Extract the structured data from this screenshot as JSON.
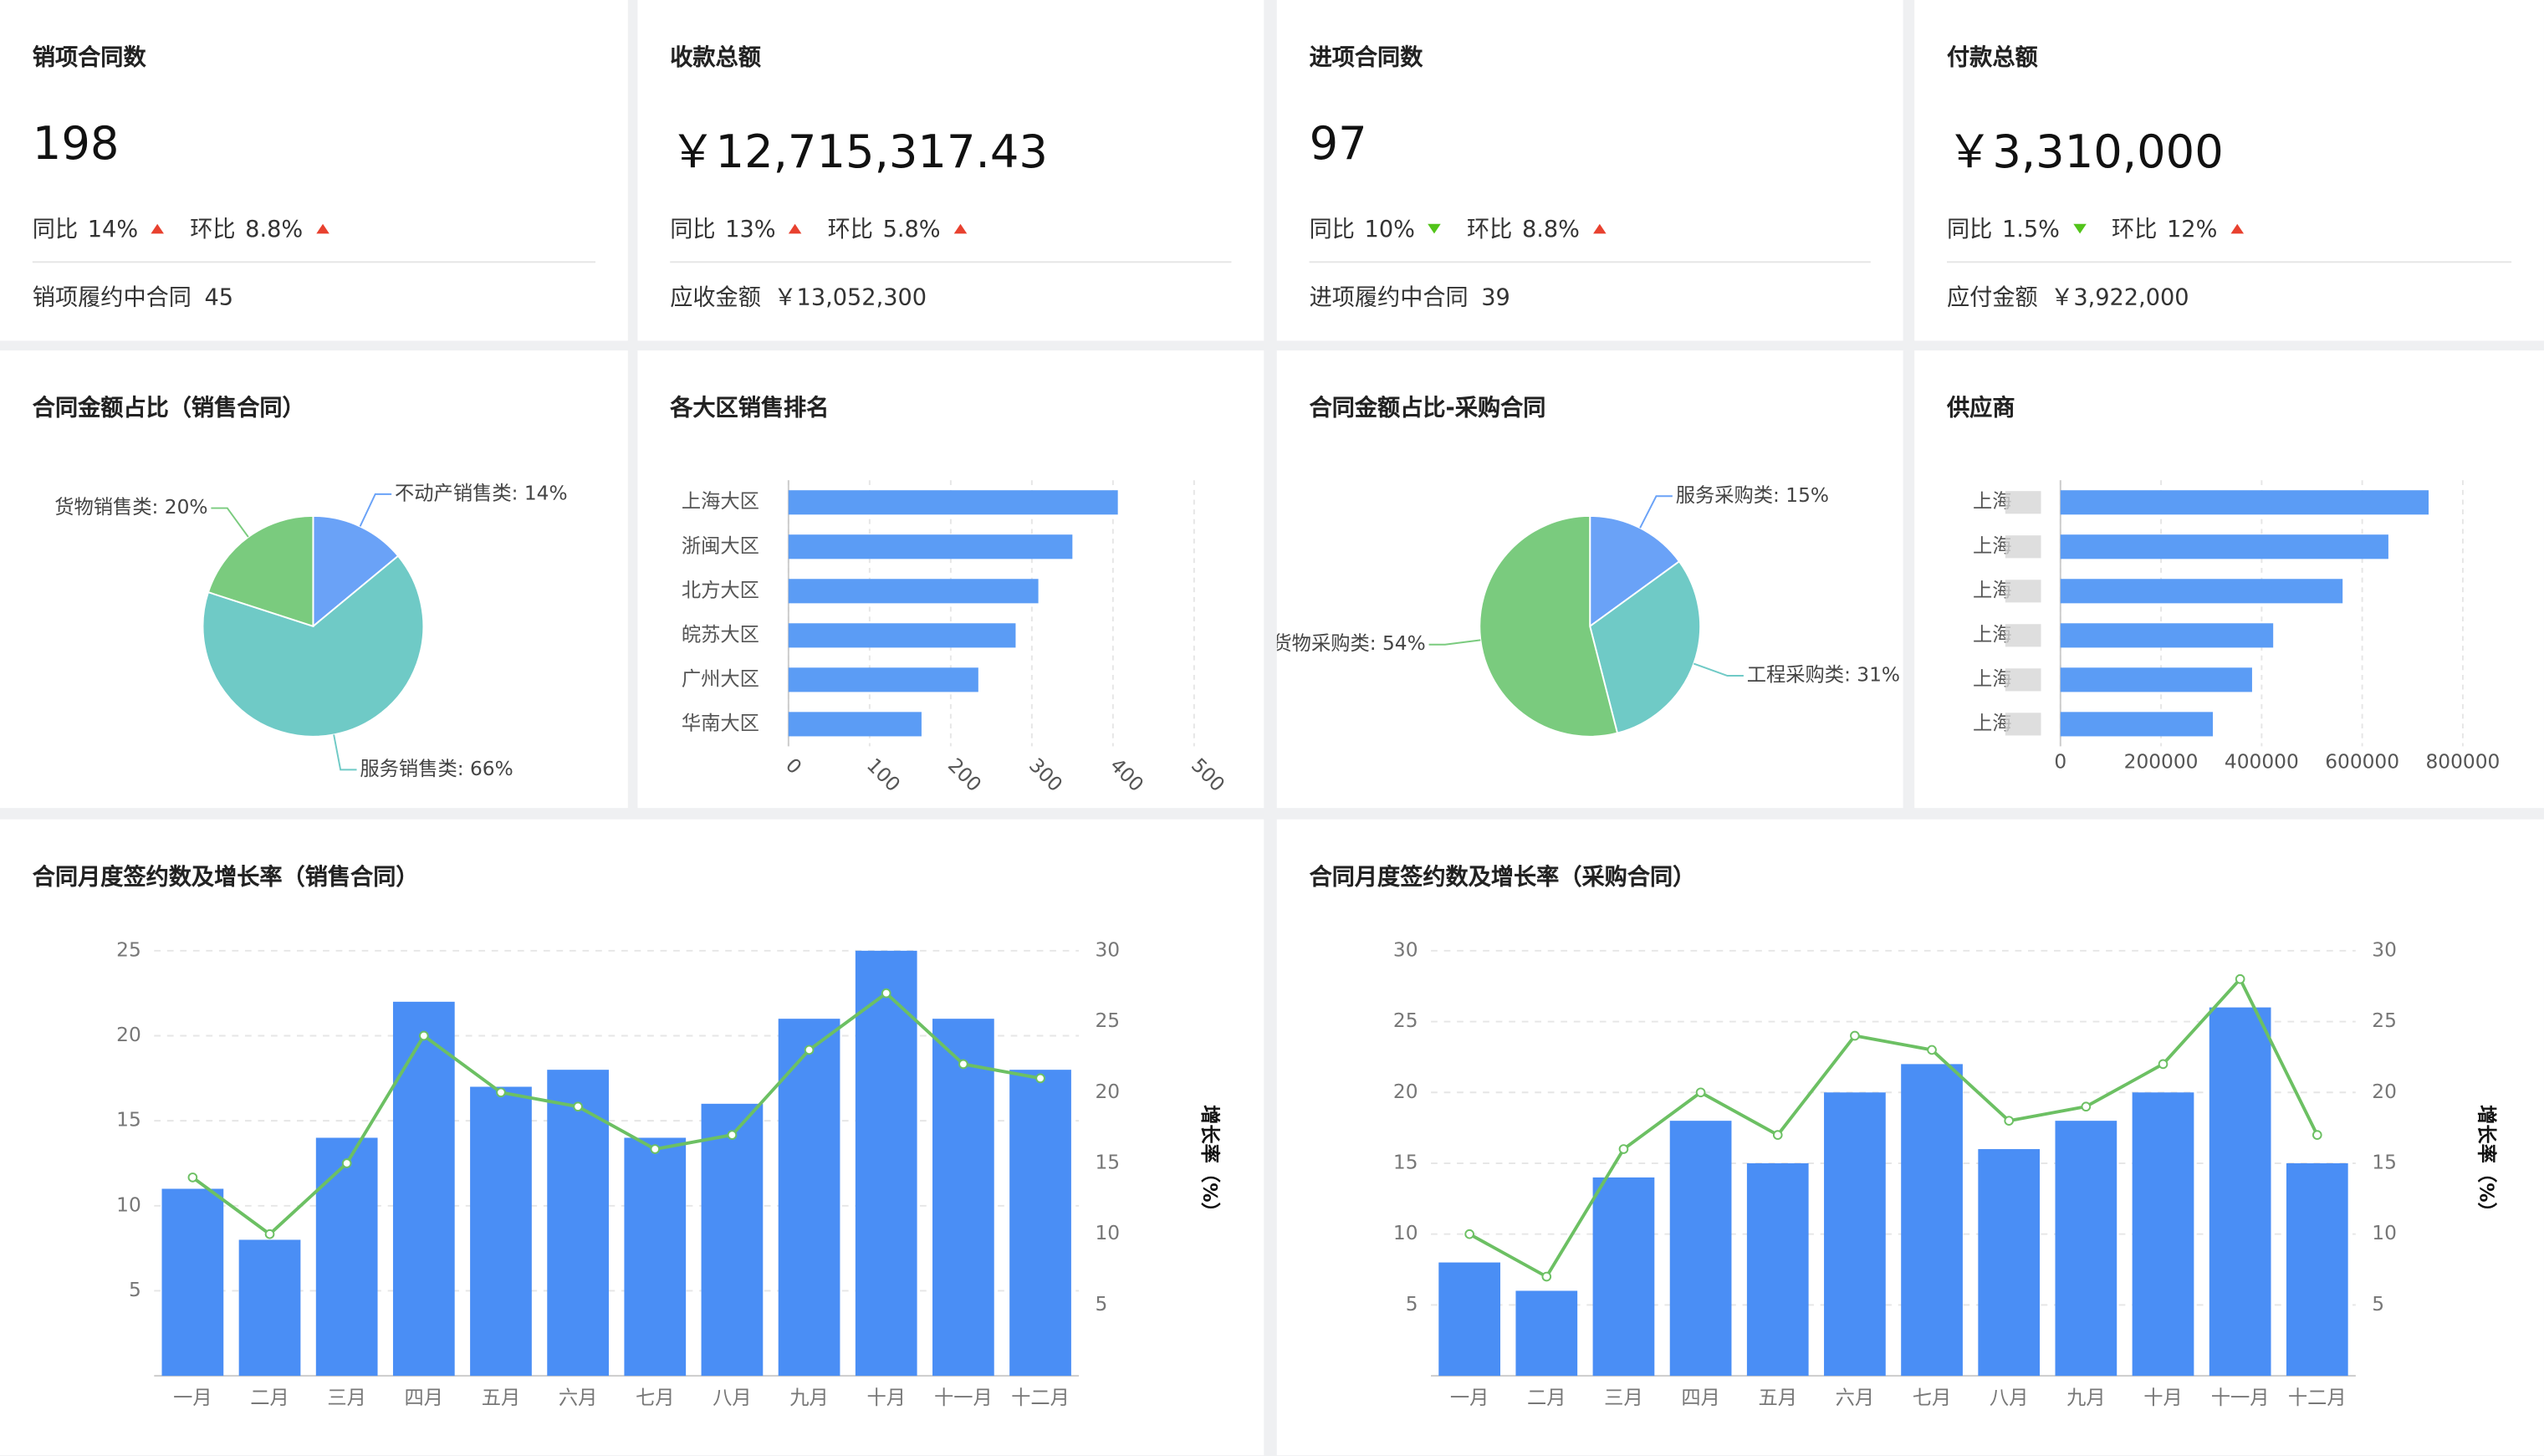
{
  "cards": [
    {
      "title": "销项合同数",
      "value": "198",
      "yoy_label": "同比",
      "yoy": "14%",
      "yoy_trend": "up",
      "mom_label": "环比",
      "mom": "8.8%",
      "mom_trend": "up",
      "footer_label": "销项履约中合同",
      "footer_value": "45"
    },
    {
      "title": "收款总额",
      "value": "￥12,715,317.43",
      "yoy_label": "同比",
      "yoy": "13%",
      "yoy_trend": "up",
      "mom_label": "环比",
      "mom": "5.8%",
      "mom_trend": "up",
      "footer_label": "应收金额",
      "footer_value": "￥13,052,300"
    },
    {
      "title": "进项合同数",
      "value": "97",
      "yoy_label": "同比",
      "yoy": "10%",
      "yoy_trend": "down",
      "mom_label": "环比",
      "mom": "8.8%",
      "mom_trend": "up",
      "footer_label": "进项履约中合同",
      "footer_value": "39"
    },
    {
      "title": "付款总额",
      "value": "￥3,310,000",
      "yoy_label": "同比",
      "yoy": "1.5%",
      "yoy_trend": "down",
      "mom_label": "环比",
      "mom": "12%",
      "mom_trend": "up",
      "footer_label": "应付金额",
      "footer_value": "￥3,922,000"
    }
  ],
  "chart_data": [
    {
      "type": "pie",
      "title": "合同金额占比（销售合同）",
      "labels": [
        "不动产销售类: 14%",
        "服务销售类: 66%",
        "货物销售类: 20%"
      ],
      "values": [
        14,
        66,
        20
      ],
      "colors": [
        "#6aa2f7",
        "#6fcac6",
        "#7acb7e"
      ]
    },
    {
      "type": "hbar",
      "title": "各大区销售排名",
      "categories": [
        "上海大区",
        "浙闽大区",
        "北方大区",
        "皖苏大区",
        "广州大区",
        "华南大区"
      ],
      "values": [
        406,
        350,
        308,
        280,
        234,
        164
      ],
      "color": "#5b9cf5",
      "xlim": [
        0,
        500
      ],
      "xticks": [
        0,
        100,
        200,
        300,
        400,
        500
      ],
      "grid": true
    },
    {
      "type": "pie",
      "title": "合同金额占比-采购合同",
      "labels": [
        "服务采购类: 15%",
        "工程采购类: 31%",
        "货物采购类: 54%"
      ],
      "values": [
        15,
        31,
        54
      ],
      "colors": [
        "#6aa2f7",
        "#6fcac6",
        "#7acb7e"
      ]
    },
    {
      "type": "hbar",
      "title": "供应商",
      "categories": [
        "上海",
        "上海",
        "上海",
        "上海",
        "上海",
        "上海"
      ],
      "values": [
        732000,
        652000,
        561000,
        423000,
        381000,
        303000
      ],
      "color": "#5b9cf5",
      "xlim": [
        0,
        800000
      ],
      "xticks": [
        0,
        200000,
        400000,
        600000,
        800000
      ],
      "grid": true
    },
    {
      "type": "combo",
      "title": "合同月度签约数及增长率（销售合同）",
      "categories": [
        "一月",
        "二月",
        "三月",
        "四月",
        "五月",
        "六月",
        "七月",
        "八月",
        "九月",
        "十月",
        "十一月",
        "十二月"
      ],
      "series": [
        {
          "type": "bar",
          "color": "#4a8ef5",
          "values": [
            11,
            8,
            14,
            22,
            17,
            18,
            14,
            16,
            21,
            25,
            21,
            18
          ]
        },
        {
          "type": "line",
          "axis": "y2",
          "color": "#6cc063",
          "values": [
            14,
            10,
            15,
            24,
            20,
            19,
            16,
            17,
            23,
            27,
            22,
            21
          ]
        }
      ],
      "ylim": [
        0,
        25
      ],
      "yticks": [
        5,
        10,
        15,
        20,
        25
      ],
      "y2lim": [
        0,
        30
      ],
      "y2ticks": [
        5,
        10,
        15,
        20,
        25,
        30
      ],
      "y2_label": "增长率（%）",
      "grid": true
    },
    {
      "type": "combo",
      "title": "合同月度签约数及增长率（采购合同）",
      "categories": [
        "一月",
        "二月",
        "三月",
        "四月",
        "五月",
        "六月",
        "七月",
        "八月",
        "九月",
        "十月",
        "十一月",
        "十二月"
      ],
      "series": [
        {
          "type": "bar",
          "color": "#4a8ef5",
          "values": [
            8,
            6,
            14,
            18,
            15,
            20,
            22,
            16,
            18,
            20,
            26,
            15
          ]
        },
        {
          "type": "line",
          "axis": "y2",
          "color": "#6cc063",
          "values": [
            10,
            7,
            16,
            20,
            17,
            24,
            23,
            18,
            19,
            22,
            28,
            17
          ]
        }
      ],
      "ylim": [
        0,
        30
      ],
      "yticks": [
        5,
        10,
        15,
        20,
        25,
        30
      ],
      "y2lim": [
        0,
        30
      ],
      "y2ticks": [
        5,
        10,
        15,
        20,
        25,
        30
      ],
      "y2_label": "增长率（%）",
      "grid": true
    }
  ]
}
